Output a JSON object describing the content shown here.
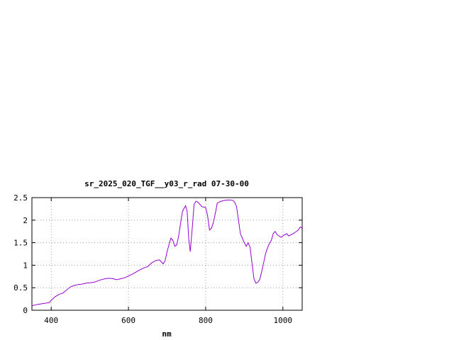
{
  "chart_data": {
    "type": "line",
    "title": "sr_2025_020_TGF__y03_r_rad 07-30-00",
    "xlabel": "nm",
    "ylabel": "",
    "xlim": [
      350,
      1050
    ],
    "ylim": [
      0,
      2.5
    ],
    "grid": true,
    "x_ticks": [
      400,
      600,
      800,
      1000
    ],
    "x_tick_labels": [
      "400",
      "600",
      "800",
      "1000"
    ],
    "y_ticks": [
      0,
      0.5,
      1,
      1.5,
      2,
      2.5
    ],
    "y_tick_labels": [
      "0",
      "0.5",
      "1",
      "1.5",
      "2",
      "2.5"
    ],
    "colors": {
      "series": "#9400d3",
      "grid": "#a0a0a0",
      "axis": "#000000"
    },
    "series": [
      {
        "x": [
          350,
          365,
          380,
          395,
          400,
          410,
          420,
          430,
          440,
          450,
          460,
          470,
          480,
          490,
          500,
          510,
          520,
          530,
          540,
          550,
          560,
          570,
          580,
          590,
          600,
          610,
          620,
          630,
          640,
          650,
          660,
          670,
          680,
          690,
          695,
          700,
          705,
          710,
          715,
          720,
          725,
          730,
          740,
          748,
          752,
          756,
          760,
          765,
          770,
          775,
          780,
          785,
          790,
          800,
          805,
          810,
          815,
          820,
          825,
          830,
          840,
          850,
          860,
          870,
          875,
          880,
          885,
          890,
          895,
          900,
          905,
          910,
          915,
          920,
          925,
          930,
          935,
          940,
          945,
          950,
          955,
          960,
          965,
          970,
          975,
          980,
          985,
          990,
          995,
          1000,
          1005,
          1010,
          1015,
          1020,
          1030,
          1040,
          1045,
          1050
        ],
        "y": [
          0.1,
          0.13,
          0.15,
          0.17,
          0.22,
          0.3,
          0.35,
          0.38,
          0.45,
          0.52,
          0.55,
          0.57,
          0.58,
          0.6,
          0.61,
          0.62,
          0.65,
          0.68,
          0.7,
          0.71,
          0.7,
          0.68,
          0.7,
          0.72,
          0.76,
          0.8,
          0.85,
          0.9,
          0.94,
          0.97,
          1.05,
          1.1,
          1.12,
          1.03,
          1.1,
          1.3,
          1.45,
          1.6,
          1.55,
          1.42,
          1.45,
          1.65,
          2.2,
          2.32,
          2.2,
          1.6,
          1.3,
          1.8,
          2.35,
          2.42,
          2.4,
          2.35,
          2.3,
          2.28,
          2.1,
          1.78,
          1.82,
          1.95,
          2.15,
          2.38,
          2.42,
          2.44,
          2.45,
          2.44,
          2.4,
          2.3,
          2.0,
          1.7,
          1.6,
          1.5,
          1.42,
          1.5,
          1.4,
          1.05,
          0.7,
          0.6,
          0.62,
          0.68,
          0.85,
          1.05,
          1.25,
          1.38,
          1.48,
          1.55,
          1.7,
          1.75,
          1.68,
          1.65,
          1.62,
          1.65,
          1.68,
          1.7,
          1.65,
          1.67,
          1.72,
          1.78,
          1.85,
          1.82
        ]
      }
    ]
  }
}
